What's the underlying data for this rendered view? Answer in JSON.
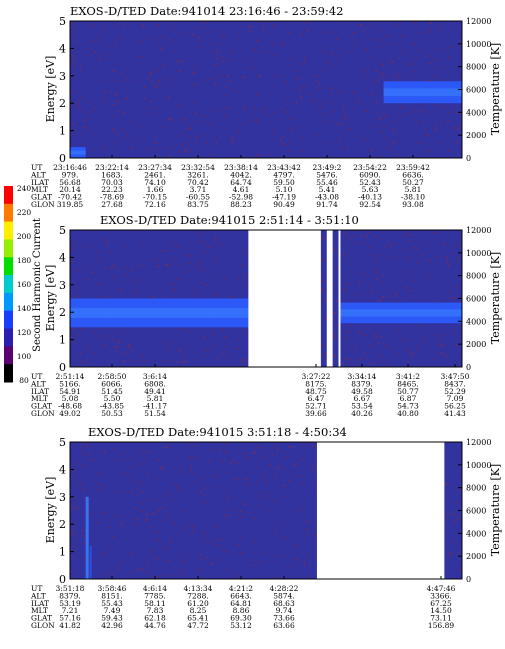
{
  "figure": {
    "colorbar": {
      "label": "Second Harmonic Current",
      "ticks": [
        "240",
        "220",
        "200",
        "180",
        "160",
        "140",
        "120",
        "100",
        "80"
      ],
      "colors": [
        "#ff0000",
        "#ff7a00",
        "#ffee00",
        "#99ee00",
        "#00dd00",
        "#00cccc",
        "#0099ff",
        "#1a3cff",
        "#2a1fb0",
        "#5a0070",
        "#000000"
      ]
    },
    "colors": {
      "background": "#3333a0",
      "noise": "#8a2a40",
      "band": "#2a5cff",
      "band_core": "#3a80ff"
    }
  },
  "chart_data": [
    {
      "type": "heatmap",
      "title": "EXOS-D/TED  Date:941014  23:16:46 - 23:59:42",
      "ylabel": "Energy [eV]",
      "y2label": "Temperature [K]",
      "ylim": [
        0,
        5
      ],
      "y2lim": [
        0,
        12000
      ],
      "yticks": [
        "0",
        "1",
        "2",
        "3",
        "4",
        "5"
      ],
      "y2ticks": [
        "0",
        "2000",
        "4000",
        "6000",
        "8000",
        "10000",
        "12000"
      ],
      "gaps": [],
      "bands": [
        {
          "x_start": 0.0,
          "x_end": 0.04,
          "energy_low": 0.0,
          "energy_high": 0.4
        },
        {
          "x_start": 0.8,
          "x_end": 1.0,
          "energy_low": 2.0,
          "energy_high": 2.8
        }
      ],
      "table": {
        "row_labels": [
          "UT",
          "ALT",
          "ILAT",
          "MLT",
          "GLAT",
          "GLON"
        ],
        "columns": [
          [
            "23:16:46",
            "979.",
            "56.68",
            "20.14",
            "-70.42",
            "319.85"
          ],
          [
            "23:22:14",
            "1683.",
            "70.03",
            "22.23",
            "-78.69",
            "27.68"
          ],
          [
            "23:27:34",
            "2461.",
            "74.10",
            "1.66",
            "-70.15",
            "72.16"
          ],
          [
            "23:32:54",
            "3261.",
            "70.42",
            "3.71",
            "-60.55",
            "83.75"
          ],
          [
            "23:38:14",
            "4042.",
            "64.74",
            "4.61",
            "-52.98",
            "88.23"
          ],
          [
            "23:43:42",
            "4797.",
            "59.50",
            "5.10",
            "-47.19",
            "90.49"
          ],
          [
            "23:49:2",
            "5476.",
            "55.46",
            "5.41",
            "-43.08",
            "91.74"
          ],
          [
            "23:54:22",
            "6090.",
            "52.43",
            "5.63",
            "-40.13",
            "92.54"
          ],
          [
            "23:59:42",
            "6636.",
            "50.27",
            "5.81",
            "-38.10",
            "93.08"
          ]
        ]
      }
    },
    {
      "type": "heatmap",
      "title": "EXOS-D/TED   Date:941015   2:51:14 - 3:51:10",
      "ylabel": "Energy [eV]",
      "y2label": "Temperature [K]",
      "ylim": [
        0,
        5
      ],
      "y2lim": [
        0,
        12000
      ],
      "yticks": [
        "0",
        "1",
        "2",
        "3",
        "4",
        "5"
      ],
      "y2ticks": [
        "0",
        "2000",
        "4000",
        "6000",
        "8000",
        "10000",
        "12000"
      ],
      "gaps": [
        [
          0.455,
          0.64
        ],
        [
          0.655,
          0.67
        ],
        [
          0.685,
          0.69
        ]
      ],
      "bands": [
        {
          "x_start": 0.0,
          "x_end": 0.455,
          "energy_low": 1.45,
          "energy_high": 2.5
        },
        {
          "x_start": 0.69,
          "x_end": 1.0,
          "energy_low": 1.6,
          "energy_high": 2.35
        }
      ],
      "table": {
        "row_labels": [
          "UT",
          "ALT",
          "ILAT",
          "MLT",
          "GLAT",
          "GLON"
        ],
        "columns": [
          [
            "2:51:14",
            "5166.",
            "54.91",
            "5.08",
            "-48.68",
            "49.02"
          ],
          [
            "2:58:50",
            "6066.",
            "51.45",
            "5.50",
            "-43.85",
            "50.53"
          ],
          [
            "3:6:14",
            "6808.",
            "49.41",
            "5.81",
            "-41.17",
            "51.54"
          ],
          [
            "3:27:22",
            "8175.",
            "48.75",
            "6.47",
            "52.71",
            "39.66"
          ],
          [
            "3:34:14",
            "8379.",
            "49.58",
            "6.67",
            "53.54",
            "40.26"
          ],
          [
            "3:41:2",
            "8465.",
            "50.77",
            "6.87",
            "54.73",
            "40.80"
          ],
          [
            "3:47:50",
            "8437.",
            "52.29",
            "7.09",
            "56.25",
            "41.43"
          ]
        ]
      }
    },
    {
      "type": "heatmap",
      "title": "EXOS-D/TED   Date:941015   3:51:18 - 4:50:34",
      "ylabel": "Energy [eV]",
      "y2label": "Temperature [K]",
      "ylim": [
        0,
        5
      ],
      "y2lim": [
        0,
        12000
      ],
      "yticks": [
        "0",
        "1",
        "2",
        "3",
        "4",
        "5"
      ],
      "y2ticks": [
        "0",
        "2000",
        "4000",
        "6000",
        "8000",
        "10000",
        "12000"
      ],
      "gaps": [
        [
          0.63,
          0.955
        ]
      ],
      "bands": [],
      "table": {
        "row_labels": [
          "UT",
          "ALT",
          "ILAT",
          "MLT",
          "GLAT",
          "GLON"
        ],
        "columns": [
          [
            "3:51:18",
            "8379.",
            "53.19",
            "7.21",
            "57.16",
            "41.82"
          ],
          [
            "3:58:46",
            "8151.",
            "55.43",
            "7.49",
            "59.43",
            "42.96"
          ],
          [
            "4:6:14",
            "7785.",
            "58.11",
            "7.83",
            "62.18",
            "44.76"
          ],
          [
            "4:13:34",
            "7288.",
            "61.20",
            "8.25",
            "65.41",
            "47.72"
          ],
          [
            "4:21:2",
            "6643.",
            "64.81",
            "8.86",
            "69.30",
            "53.12"
          ],
          [
            "4:28:22",
            "5874.",
            "68.63",
            "9.74",
            "73.66",
            "63.66"
          ],
          [
            "4:47:46",
            "3366.",
            "67.25",
            "14.50",
            "73.11",
            "156.89"
          ]
        ]
      }
    }
  ]
}
